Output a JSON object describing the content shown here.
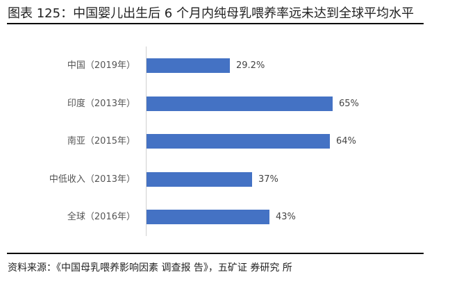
{
  "header": {
    "title": "图表 125：中国婴儿出生后 6 个月内纯母乳喂养率远未达到全球平均水平"
  },
  "footer": {
    "source": "资料来源：《中国母乳喂养影响因素 调查报 告》，五矿证 券研究 所"
  },
  "style": {
    "bar_color": "#4472c4",
    "axis_color": "#d0d0d0",
    "label_color": "#555555"
  },
  "chart_data": {
    "type": "bar",
    "orientation": "horizontal",
    "title": "中国婴儿出生后 6 个月内纯母乳喂养率远未达到全球平均水平",
    "categories": [
      "中国（2019年）",
      "印度（2013年）",
      "南亚（2015年）",
      "中低收入（2013年）",
      "全球（2016年）"
    ],
    "values": [
      29.2,
      65,
      64,
      37,
      43
    ],
    "labels": [
      "29.2%",
      "65%",
      "64%",
      "37%",
      "43%"
    ],
    "xlabel": "",
    "ylabel": "",
    "unit": "%",
    "grid": false,
    "legend": null
  }
}
